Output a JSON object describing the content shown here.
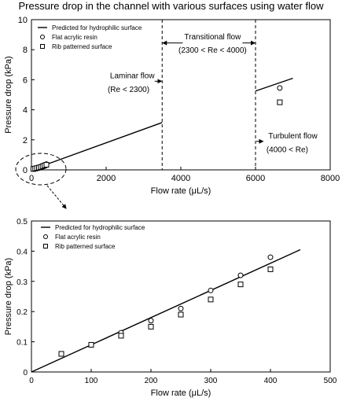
{
  "title": "Pressure drop in the channel with various surfaces using water flow",
  "chart_data": [
    {
      "type": "scatter",
      "xlabel": "Flow rate (μL/s)",
      "ylabel": "Pressure drop (kPa)",
      "xlim": [
        0,
        8000
      ],
      "ylim": [
        0,
        10
      ],
      "xticks": [
        0,
        2000,
        4000,
        6000,
        8000
      ],
      "yticks": [
        0,
        2,
        4,
        6,
        8,
        10
      ],
      "grid": false,
      "legend_position": "top-left",
      "series": [
        {
          "name": "Predicted for hydrophilic surface",
          "style": "line",
          "x": [
            0,
            3500
          ],
          "y": [
            0,
            3.15
          ]
        },
        {
          "name": "Predicted for hydrophilic surface",
          "style": "line",
          "x": [
            6000,
            7000
          ],
          "y": [
            5.25,
            6.1
          ]
        },
        {
          "name": "Flat acrylic resin",
          "style": "circle",
          "x": [
            50,
            100,
            150,
            200,
            250,
            300,
            350,
            400,
            6650
          ],
          "y": [
            0.06,
            0.09,
            0.13,
            0.17,
            0.21,
            0.27,
            0.32,
            0.38,
            5.45
          ]
        },
        {
          "name": "Rib patterned surface",
          "style": "square",
          "x": [
            50,
            100,
            150,
            200,
            250,
            300,
            350,
            400,
            6650
          ],
          "y": [
            0.06,
            0.09,
            0.12,
            0.15,
            0.19,
            0.24,
            0.29,
            0.34,
            4.5
          ]
        }
      ],
      "vlines": [
        3500,
        6000
      ],
      "annotations": [
        {
          "text": "Transitional flow",
          "x": 4850,
          "y": 8.9
        },
        {
          "text": "(2300 < Re < 4000)",
          "x": 4850,
          "y": 8.0
        },
        {
          "text": "Laminar flow",
          "x": 2700,
          "y": 6.3
        },
        {
          "text": "(Re < 2300)",
          "x": 2600,
          "y": 5.4
        },
        {
          "text": "Turbulent flow",
          "x": 7000,
          "y": 2.3
        },
        {
          "text": "(4000 < Re)",
          "x": 6850,
          "y": 1.4
        }
      ]
    },
    {
      "type": "scatter",
      "xlabel": "Flow rate (μL/s)",
      "ylabel": "Pressure drop (kPa)",
      "xlim": [
        0,
        500
      ],
      "ylim": [
        0,
        0.5
      ],
      "xticks": [
        0,
        100,
        200,
        300,
        400,
        500
      ],
      "yticks": [
        0,
        0.1,
        0.2,
        0.3,
        0.4,
        0.5
      ],
      "grid": false,
      "legend_position": "top-left",
      "series": [
        {
          "name": "Predicted for hydrophilic surface",
          "style": "line",
          "x": [
            0,
            450
          ],
          "y": [
            0,
            0.405
          ]
        },
        {
          "name": "Flat acrylic resin",
          "style": "circle",
          "x": [
            50,
            100,
            150,
            200,
            250,
            300,
            350,
            400
          ],
          "y": [
            0.06,
            0.09,
            0.13,
            0.17,
            0.21,
            0.27,
            0.32,
            0.38
          ]
        },
        {
          "name": "Rib patterned surface",
          "style": "square",
          "x": [
            50,
            100,
            150,
            200,
            250,
            300,
            350,
            400
          ],
          "y": [
            0.06,
            0.09,
            0.12,
            0.15,
            0.19,
            0.24,
            0.29,
            0.34
          ]
        }
      ]
    }
  ]
}
